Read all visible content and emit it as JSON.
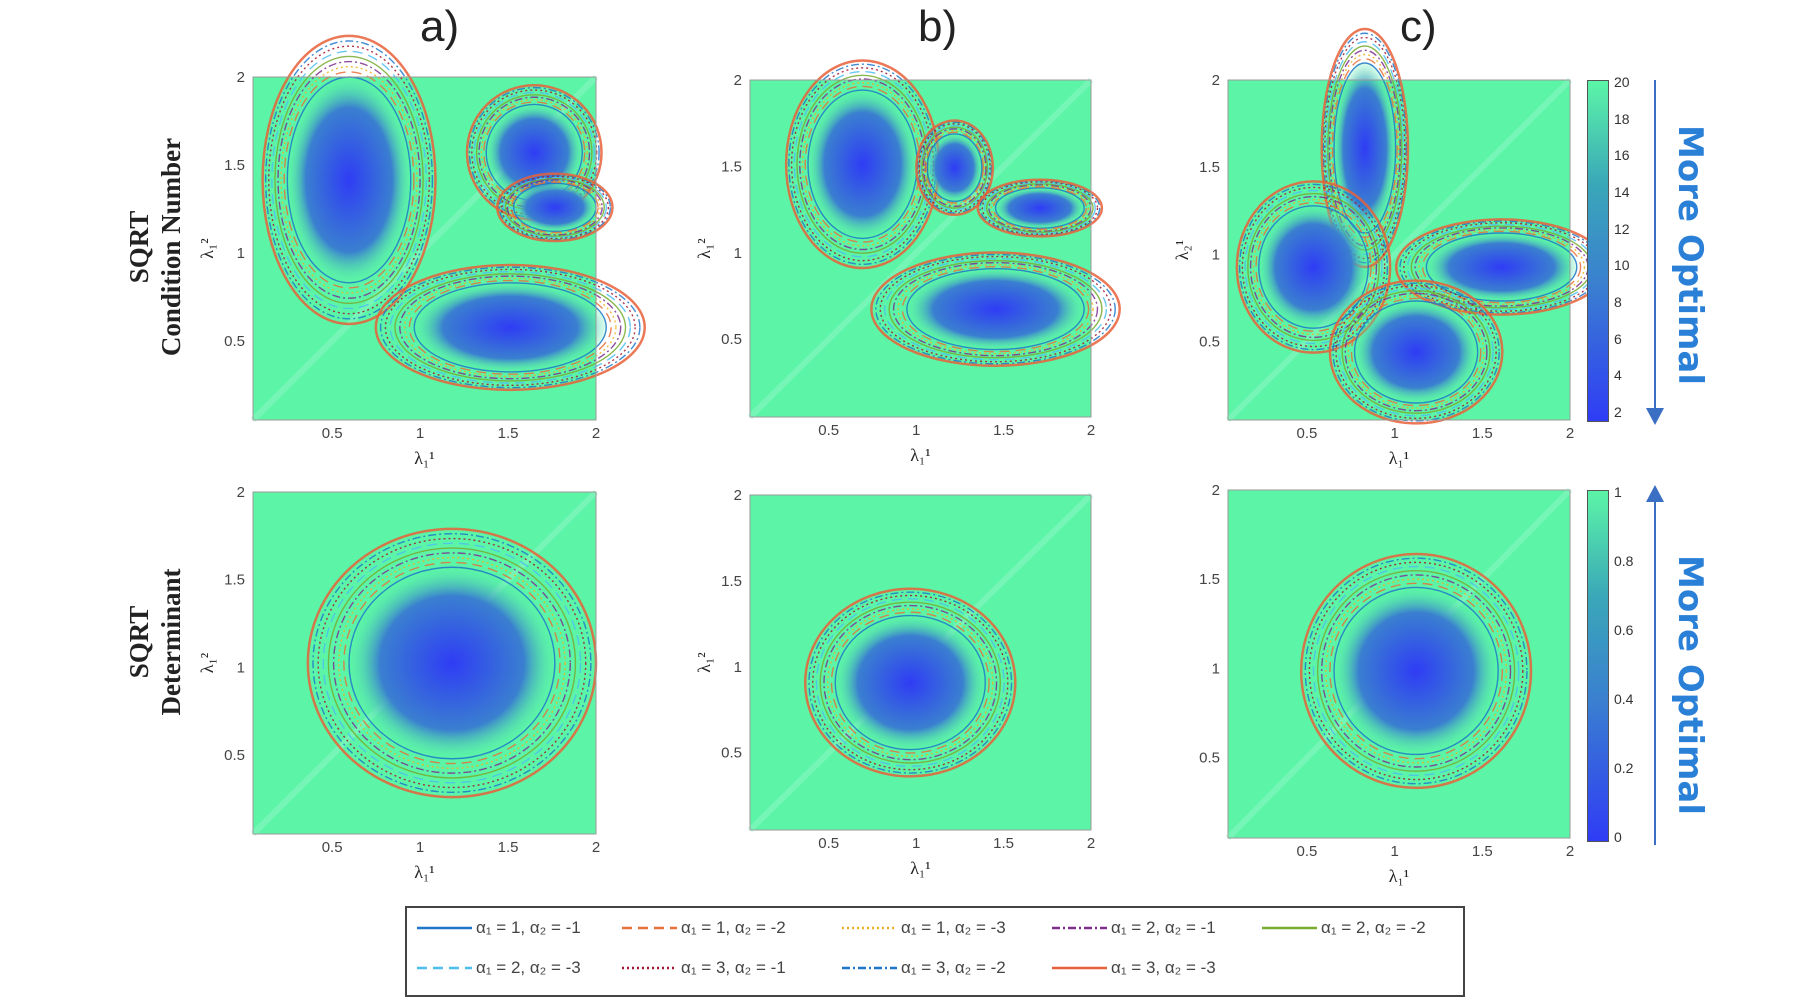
{
  "column_titles": [
    "a)",
    "b)",
    "c)"
  ],
  "row_titles": [
    {
      "line1": "SQRT",
      "line2": "Condition Number"
    },
    {
      "line1": "SQRT",
      "line2": "Determinant"
    }
  ],
  "colorbars": [
    {
      "ticks": [
        "20",
        "18",
        "16",
        "14",
        "12",
        "10",
        "8",
        "6",
        "4",
        "2"
      ],
      "range": [
        1,
        20
      ],
      "annotation": "More Optimal",
      "arrow": "down"
    },
    {
      "ticks": [
        "1",
        "0.8",
        "0.6",
        "0.4",
        "0.2",
        "0"
      ],
      "range": [
        0,
        1
      ],
      "annotation": "More Optimal",
      "arrow": "up"
    }
  ],
  "colors": {
    "low": "#2f3cf5",
    "mid": "#3a7fd0",
    "high": "#5cf5a7"
  },
  "chart_data": [
    {
      "type": "heatmap",
      "panel": "a) SQRT Condition Number",
      "xlabel": "λ₁¹",
      "ylabel": "λ₁²",
      "xlim": [
        0.05,
        2
      ],
      "ylim": [
        0.05,
        2
      ],
      "xticks": [
        "0.5",
        "1",
        "1.5",
        "2"
      ],
      "yticks": [
        "0.5",
        "1",
        "1.5",
        "2"
      ]
    },
    {
      "type": "heatmap",
      "panel": "b) SQRT Condition Number",
      "xlabel": "λ₁¹",
      "ylabel": "λ₁²",
      "xlim": [
        0.05,
        2
      ],
      "ylim": [
        0.05,
        2
      ],
      "xticks": [
        "0.5",
        "1",
        "1.5",
        "2"
      ],
      "yticks": [
        "0.5",
        "1",
        "1.5",
        "2"
      ]
    },
    {
      "type": "heatmap",
      "panel": "c) SQRT Condition Number",
      "xlabel": "λ₁¹",
      "ylabel": "λ₂¹",
      "xlim": [
        0.05,
        2
      ],
      "ylim": [
        0.05,
        2
      ],
      "xticks": [
        "0.5",
        "1",
        "1.5",
        "2"
      ],
      "yticks": [
        "0.5",
        "1",
        "1.5",
        "2"
      ]
    },
    {
      "type": "heatmap",
      "panel": "a) SQRT Determinant",
      "xlabel": "λ₁¹",
      "ylabel": "λ₁²",
      "xlim": [
        0.05,
        2
      ],
      "ylim": [
        0.05,
        2
      ],
      "xticks": [
        "0.5",
        "1",
        "1.5",
        "2"
      ],
      "yticks": [
        "0.5",
        "1",
        "1.5",
        "2"
      ]
    },
    {
      "type": "heatmap",
      "panel": "b) SQRT Determinant",
      "xlabel": "λ₁¹",
      "ylabel": "λ₁²",
      "xlim": [
        0.05,
        2
      ],
      "ylim": [
        0.05,
        2
      ],
      "xticks": [
        "0.5",
        "1",
        "1.5",
        "2"
      ],
      "yticks": [
        "0.5",
        "1",
        "1.5",
        "2"
      ]
    },
    {
      "type": "heatmap",
      "panel": "c) SQRT Determinant",
      "xlabel": "λ₁¹",
      "ylabel": "",
      "xlim": [
        0.05,
        2
      ],
      "ylim": [
        0.05,
        2
      ],
      "xticks": [
        "0.5",
        "1",
        "1.5",
        "2"
      ],
      "yticks": [
        "0.5",
        "1",
        "1.5",
        "2"
      ]
    }
  ],
  "legend": [
    {
      "label": "α₁ = 1, α₂ = -1",
      "color": "#1f77c9",
      "dash": ""
    },
    {
      "label": "α₁ = 1, α₂ = -2",
      "color": "#e8703a",
      "dash": "10,6"
    },
    {
      "label": "α₁ = 1, α₂ = -3",
      "color": "#edb120",
      "dash": "2,3"
    },
    {
      "label": "α₁ = 2, α₂ = -1",
      "color": "#7e2f8e",
      "dash": "8,3,2,3"
    },
    {
      "label": "α₁ = 2, α₂ = -2",
      "color": "#77ac30",
      "dash": ""
    },
    {
      "label": "α₁ = 2, α₂ = -3",
      "color": "#4dbeee",
      "dash": "10,6"
    },
    {
      "label": "α₁ = 3, α₂ = -1",
      "color": "#a2142f",
      "dash": "2,3"
    },
    {
      "label": "α₁ = 3, α₂ = -2",
      "color": "#1f77c9",
      "dash": "8,3,2,3"
    },
    {
      "label": "α₁ = 3, α₂ = -3",
      "color": "#e8603a",
      "dash": ""
    }
  ]
}
